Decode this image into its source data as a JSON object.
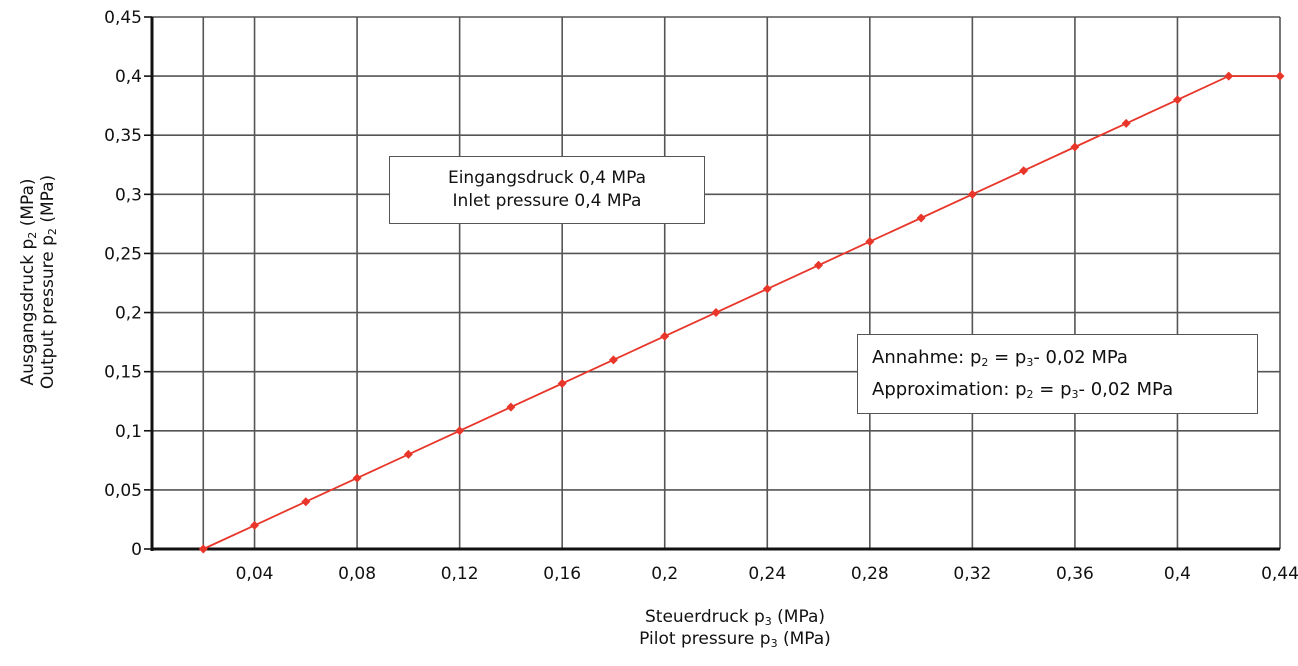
{
  "chart_data": {
    "type": "line",
    "xlabel_line1": "Steuerdruck p",
    "xlabel_line2": "Pilot pressure p",
    "x_sub": "3",
    "x_unit": " (MPa)",
    "ylabel_line1": "Ausgangsdruck p",
    "ylabel_line2": "Output pressure p",
    "y_sub": "2",
    "y_unit": " (MPa)",
    "xlim": [
      0,
      0.44
    ],
    "ylim": [
      0,
      0.45
    ],
    "x_ticks": [
      0.04,
      0.08,
      0.12,
      0.16,
      0.2,
      0.24,
      0.28,
      0.32,
      0.36,
      0.4,
      0.44
    ],
    "x_tick_labels": [
      "0,04",
      "0,08",
      "0,12",
      "0,16",
      "0,2",
      "0,24",
      "0,28",
      "0,32",
      "0,36",
      "0,4",
      "0,44"
    ],
    "y_ticks": [
      0,
      0.05,
      0.1,
      0.15,
      0.2,
      0.25,
      0.3,
      0.35,
      0.4,
      0.45
    ],
    "y_tick_labels": [
      "0",
      "0,05",
      "0,1",
      "0,15",
      "0,2",
      "0,25",
      "0,3",
      "0,35",
      "0,4",
      "0,45"
    ],
    "grid": true,
    "series": [
      {
        "color": "#e8362a",
        "x": [
          0.02,
          0.04,
          0.06,
          0.08,
          0.1,
          0.12,
          0.14,
          0.16,
          0.18,
          0.2,
          0.22,
          0.24,
          0.26,
          0.28,
          0.3,
          0.32,
          0.34,
          0.36,
          0.38,
          0.4,
          0.42,
          0.44
        ],
        "y": [
          0,
          0.02,
          0.04,
          0.06,
          0.08,
          0.1,
          0.12,
          0.14,
          0.16,
          0.18,
          0.2,
          0.22,
          0.24,
          0.26,
          0.28,
          0.3,
          0.32,
          0.34,
          0.36,
          0.38,
          0.4,
          0.4
        ]
      }
    ],
    "annotations": {
      "inlet_line1": "Eingangsdruck 0,4 MPa",
      "inlet_line2": "Inlet pressure 0,4 MPa",
      "approx_line1_prefix": "Annahme: p",
      "approx_line2_prefix": "Approximation: p",
      "approx_sub2": "2",
      "approx_eq": " = p",
      "approx_sub3": "3",
      "approx_suffix": "- 0,02 MPa"
    },
    "colors": {
      "grid": "#555555",
      "axis": "#111111",
      "series": "#e8362a"
    }
  }
}
